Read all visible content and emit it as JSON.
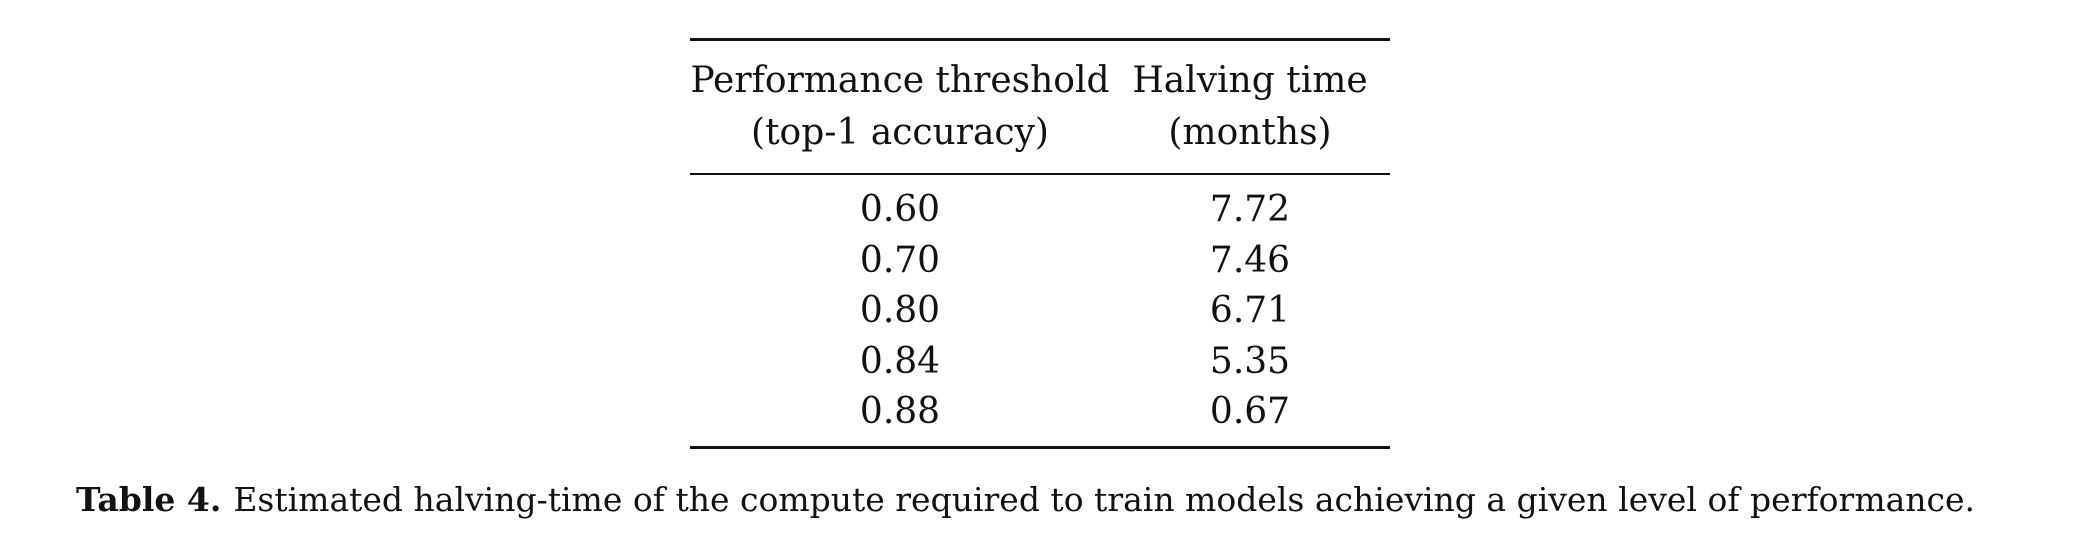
{
  "table": {
    "headers": [
      {
        "line1": "Performance threshold",
        "line2": "(top-1 accuracy)"
      },
      {
        "line1": "Halving time",
        "line2": "(months)"
      }
    ],
    "rows": [
      [
        "0.60",
        "7.72"
      ],
      [
        "0.70",
        "7.46"
      ],
      [
        "0.80",
        "6.71"
      ],
      [
        "0.84",
        "5.35"
      ],
      [
        "0.88",
        "0.67"
      ]
    ]
  },
  "caption": {
    "label": "Table 4.",
    "text": "Estimated halving-time of the compute required to train models achieving a given level of performance."
  }
}
